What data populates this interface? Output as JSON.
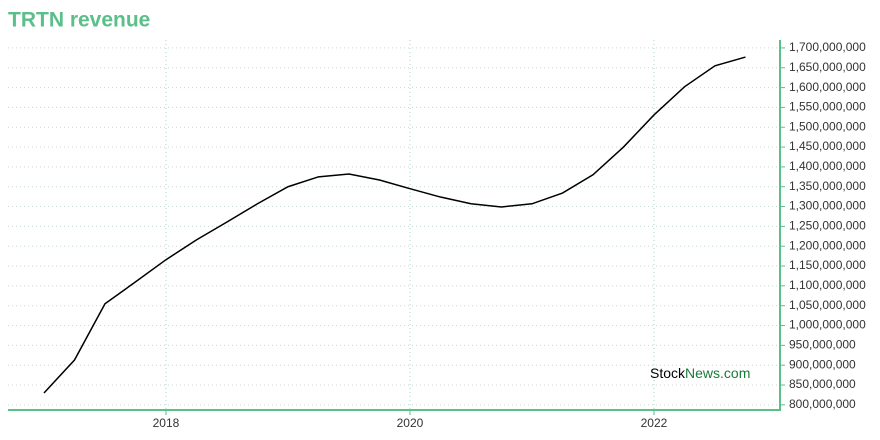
{
  "chart_data": {
    "type": "line",
    "title": "TRTN revenue",
    "title_color": "#5bbf8a",
    "axis_color": "#5bbf8a",
    "grid": true,
    "watermark": [
      {
        "text": "Stock",
        "color": "#000000"
      },
      {
        "text": "News.com",
        "color": "#1a7a3a"
      }
    ],
    "x": [
      2017.0,
      2017.25,
      2017.5,
      2017.75,
      2018.0,
      2018.25,
      2018.5,
      2018.75,
      2019.0,
      2019.25,
      2019.5,
      2019.75,
      2020.0,
      2020.25,
      2020.5,
      2020.75,
      2021.0,
      2021.25,
      2021.5,
      2021.75,
      2022.0,
      2022.25,
      2022.5,
      2022.75
    ],
    "xlim": [
      2016.705,
      2023.033
    ],
    "xticks": [
      2018,
      2020,
      2022
    ],
    "ylim": [
      787000000,
      1720000000
    ],
    "yticks": [
      {
        "value": 800000000,
        "label": "800,000,000"
      },
      {
        "value": 850000000,
        "label": "850,000,000"
      },
      {
        "value": 900000000,
        "label": "900,000,000"
      },
      {
        "value": 950000000,
        "label": "950,000,000"
      },
      {
        "value": 1000000000,
        "label": "1,000,000,000"
      },
      {
        "value": 1050000000,
        "label": "1,050,000,000"
      },
      {
        "value": 1100000000,
        "label": "1,100,000,000"
      },
      {
        "value": 1150000000,
        "label": "1,150,000,000"
      },
      {
        "value": 1200000000,
        "label": "1,200,000,000"
      },
      {
        "value": 1250000000,
        "label": "1,250,000,000"
      },
      {
        "value": 1300000000,
        "label": "1,300,000,000"
      },
      {
        "value": 1350000000,
        "label": "1,350,000,000"
      },
      {
        "value": 1400000000,
        "label": "1,400,000,000"
      },
      {
        "value": 1450000000,
        "label": "1,450,000,000"
      },
      {
        "value": 1500000000,
        "label": "1,500,000,000"
      },
      {
        "value": 1550000000,
        "label": "1,550,000,000"
      },
      {
        "value": 1600000000,
        "label": "1,600,000,000"
      },
      {
        "value": 1650000000,
        "label": "1,650,000,000"
      },
      {
        "value": 1700000000,
        "label": "1,700,000,000"
      }
    ],
    "series": [
      {
        "name": "Revenue",
        "color": "#000000",
        "values": [
          830000000,
          913000000,
          1055000000,
          1110000000,
          1166000000,
          1216000000,
          1261000000,
          1307000000,
          1350000000,
          1375000000,
          1382000000,
          1367000000,
          1345000000,
          1324000000,
          1307000000,
          1299000000,
          1307000000,
          1334000000,
          1380000000,
          1450000000,
          1531000000,
          1602000000,
          1655000000,
          1677000000
        ]
      }
    ]
  }
}
